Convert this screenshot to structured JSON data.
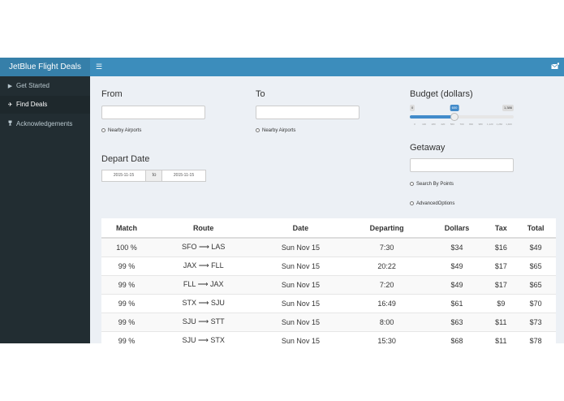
{
  "header": {
    "brand": "JetBlue Flight Deals",
    "toggle_icon": "☰",
    "mail_icon": "envelope-icon"
  },
  "sidebar": {
    "items": [
      {
        "icon": "play-icon",
        "glyph": "▶",
        "label": "Get Started",
        "active": false
      },
      {
        "icon": "plane-icon",
        "glyph": "✈",
        "label": "Find Deals",
        "active": true
      },
      {
        "icon": "trophy-icon",
        "glyph": "🏆",
        "label": "Acknowledgements",
        "active": false
      }
    ]
  },
  "form": {
    "from_label": "From",
    "from_value": "",
    "from_nearby": "Nearby Airports",
    "to_label": "To",
    "to_value": "",
    "to_nearby": "Nearby Airports",
    "depart_label": "Depart Date",
    "depart_start": "2015-11-15",
    "depart_sep": "to",
    "depart_end": "2015-11-15",
    "budget_label": "Budget (dollars)",
    "budget_min": "0",
    "budget_value": "600",
    "budget_max": "1,386",
    "budget_fraction": 0.433,
    "budget_ticks": [
      "0",
      "140",
      "280",
      "420",
      "560",
      "700",
      "840",
      "980",
      "1,120",
      "1,260",
      "1,400"
    ],
    "getaway_label": "Getaway",
    "getaway_value": "",
    "points_label": "Search By Points",
    "advanced_label": "AdvancedOptions"
  },
  "table": {
    "headers": [
      "Match",
      "Route",
      "Date",
      "Departing",
      "Dollars",
      "Tax",
      "Total"
    ],
    "rows": [
      [
        "100 %",
        "SFO ⟶ LAS",
        "Sun Nov 15",
        "7:30",
        "$34",
        "$16",
        "$49"
      ],
      [
        "99 %",
        "JAX ⟶ FLL",
        "Sun Nov 15",
        "20:22",
        "$49",
        "$17",
        "$65"
      ],
      [
        "99 %",
        "FLL ⟶ JAX",
        "Sun Nov 15",
        "7:20",
        "$49",
        "$17",
        "$65"
      ],
      [
        "99 %",
        "STX ⟶ SJU",
        "Sun Nov 15",
        "16:49",
        "$61",
        "$9",
        "$70"
      ],
      [
        "99 %",
        "SJU ⟶ STT",
        "Sun Nov 15",
        "8:00",
        "$63",
        "$11",
        "$73"
      ],
      [
        "99 %",
        "SJU ⟶ STX",
        "Sun Nov 15",
        "15:30",
        "$68",
        "$11",
        "$78"
      ]
    ]
  },
  "colors": {
    "header": "#3c8dbc",
    "brand": "#367fa9",
    "sidebar": "#222d32",
    "accent": "#428bca"
  }
}
